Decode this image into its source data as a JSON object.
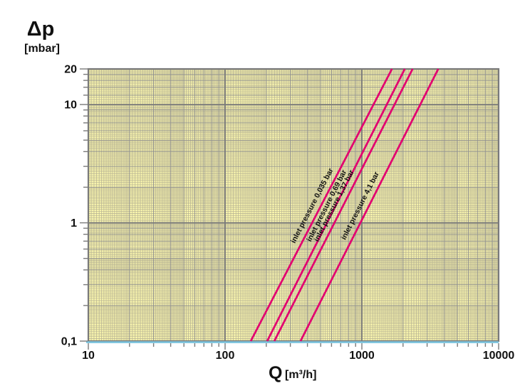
{
  "chart_data": {
    "type": "line",
    "title": "",
    "x_axis": {
      "title": "Q",
      "unit": "[m³/h]",
      "scale": "log",
      "range": [
        10,
        10000
      ],
      "tick_values": [
        10,
        100,
        1000,
        10000
      ],
      "tick_labels": [
        "10",
        "100",
        "1000",
        "10000"
      ]
    },
    "y_axis": {
      "title": "Δp",
      "unit": "[mbar]",
      "scale": "log",
      "range": [
        0.1,
        20
      ],
      "tick_values": [
        20,
        10,
        1,
        0.1
      ],
      "tick_labels": [
        "20",
        "10",
        "1",
        "0,1"
      ]
    },
    "grid": "log-log fine graph paper",
    "legend_position": "labels-along-lines",
    "series": [
      {
        "label": "inlet pressure 0,035 bar",
        "inlet_pressure": "0,035 bar",
        "points": [
          {
            "Q": 154,
            "dp": 0.1
          },
          {
            "Q": 1660,
            "dp": 20
          }
        ]
      },
      {
        "label": "inlet pressure 0,69 bar",
        "inlet_pressure": "0,69 bar",
        "points": [
          {
            "Q": 203,
            "dp": 0.1
          },
          {
            "Q": 2060,
            "dp": 20
          }
        ]
      },
      {
        "label": "inlet pressure 1,37 bar",
        "inlet_pressure": "1,37 bar",
        "points": [
          {
            "Q": 229,
            "dp": 0.1
          },
          {
            "Q": 2350,
            "dp": 20
          }
        ]
      },
      {
        "label": "inlet pressure 4,1 bar",
        "inlet_pressure": "4,1 bar",
        "points": [
          {
            "Q": 356,
            "dp": 0.1
          },
          {
            "Q": 3620,
            "dp": 20
          }
        ]
      }
    ],
    "colors": {
      "plot_background": "#f8f4ad",
      "series_line": "#e2006f",
      "baseline_accent": "#7cc4de",
      "grid_major": "#7a7a7a",
      "grid_minor": "#8f8f8f",
      "grid_fine": "#b5b193",
      "text": "#111111"
    }
  }
}
